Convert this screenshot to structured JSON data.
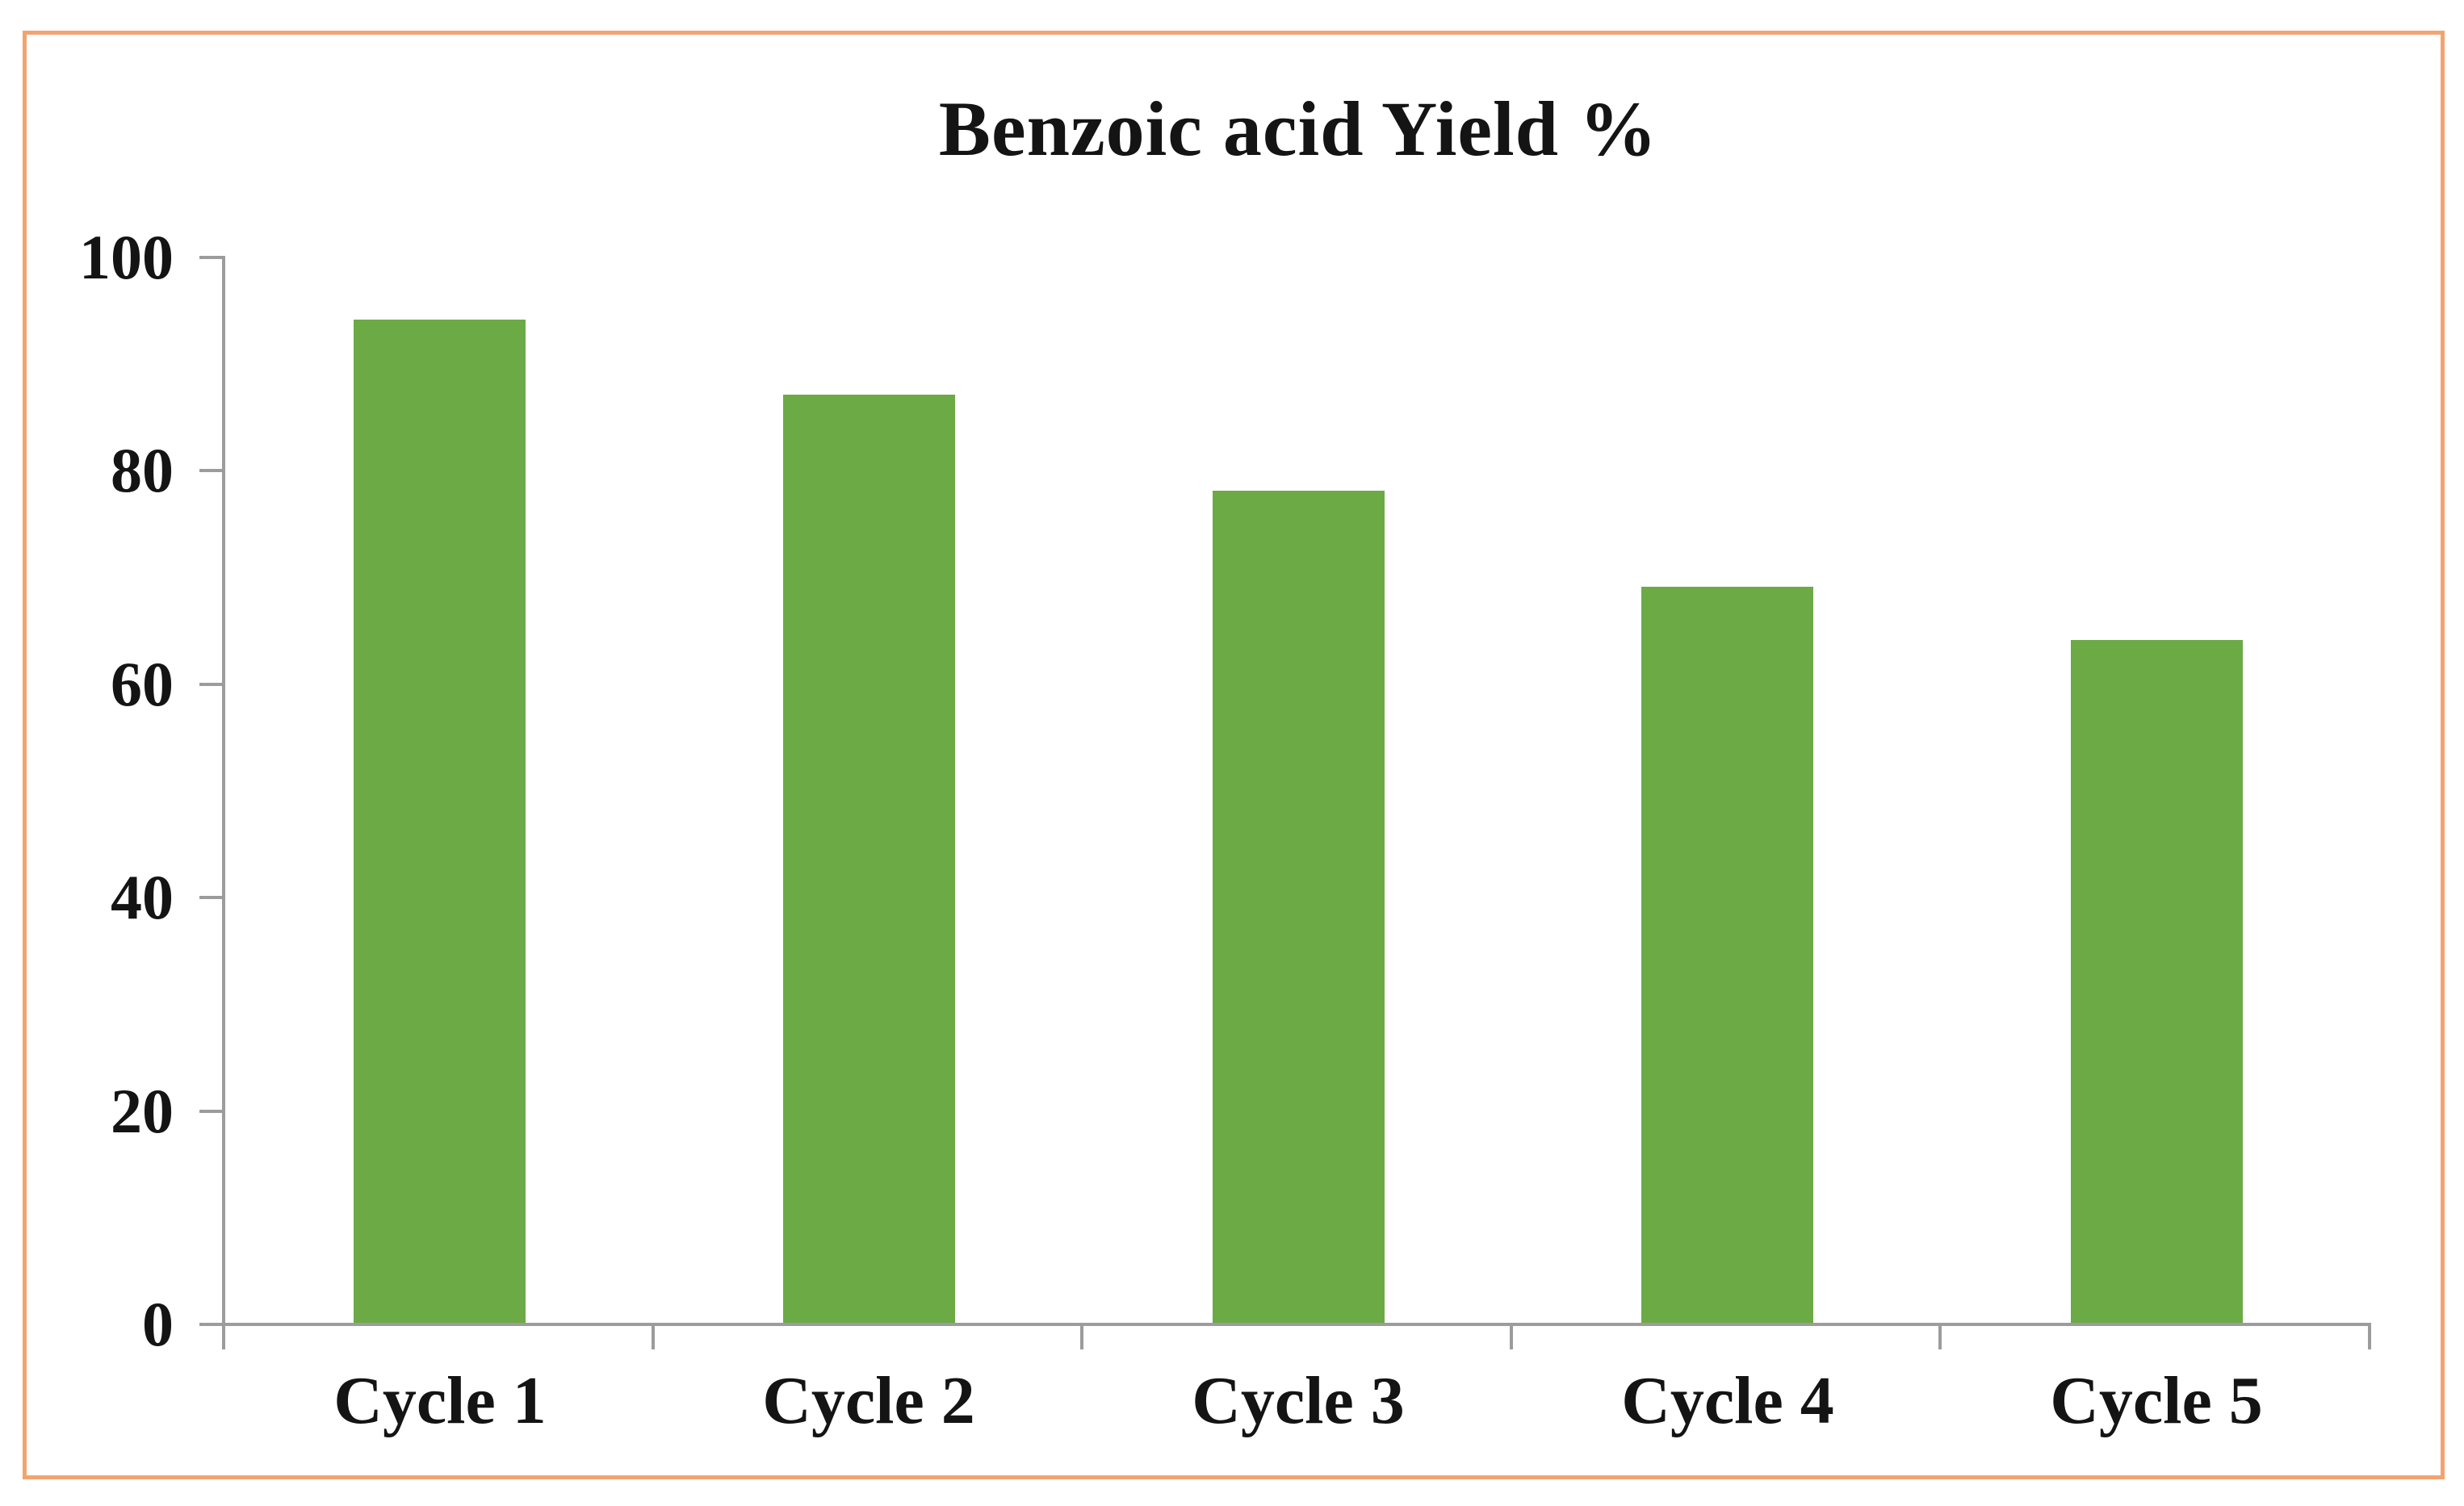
{
  "figure": {
    "border_color": "#F2A470",
    "background_color": "#FFFFFF"
  },
  "chart_data": {
    "type": "bar",
    "title": "Benzoic acid Yield %",
    "categories": [
      "Cycle 1",
      "Cycle 2",
      "Cycle 3",
      "Cycle 4",
      "Cycle 5"
    ],
    "values": [
      94,
      87,
      78,
      69,
      64
    ],
    "series": [
      {
        "name": "Benzoic acid Yield %",
        "values": [
          94,
          87,
          78,
          69,
          64
        ]
      }
    ],
    "xlabel": "",
    "ylabel": "",
    "ylim": [
      0,
      100
    ],
    "ytick_step": 20,
    "ytick_labels": [
      "0",
      "20",
      "40",
      "60",
      "80",
      "100"
    ],
    "grid": false,
    "legend": false,
    "bar_color": "#6CAA46",
    "axis_color": "#9C9C9C",
    "text_color": "#141414"
  }
}
